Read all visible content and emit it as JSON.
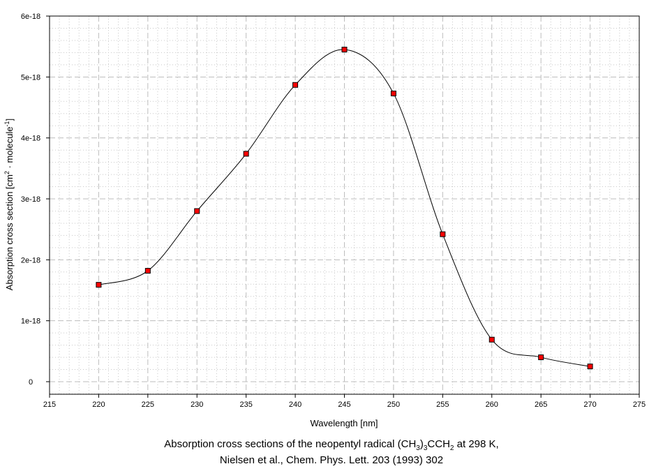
{
  "chart_data": {
    "type": "line",
    "xlabel": "Wavelength [nm]",
    "ylabel": "Absorption cross section [cm2 · molecule-1]",
    "ylabel_parts": {
      "a": "Absorption cross section [cm",
      "sup1": "2",
      "b": " · molecule",
      "sup2": "-1",
      "c": "]"
    },
    "caption_line1_parts": {
      "a": "Absorption cross sections of the neopentyl radical (CH",
      "sub1": "3",
      "b": ")",
      "sub2": "3",
      "c": "CCH",
      "sub3": "2",
      "d": " at 298 K,"
    },
    "caption_line2": "Nielsen et al., Chem. Phys. Lett. 203 (1993) 302",
    "xlim": [
      215,
      275
    ],
    "ylim": [
      -2e-19,
      6e-18
    ],
    "x_ticks": [
      "215",
      "220",
      "225",
      "230",
      "235",
      "240",
      "245",
      "250",
      "255",
      "260",
      "265",
      "270",
      "275"
    ],
    "y_ticks": [
      {
        "v": 0,
        "label": "0"
      },
      {
        "v": 1e-18,
        "label": "1e-18"
      },
      {
        "v": 2e-18,
        "label": "2e-18"
      },
      {
        "v": 3e-18,
        "label": "3e-18"
      },
      {
        "v": 4e-18,
        "label": "4e-18"
      },
      {
        "v": 5e-18,
        "label": "5e-18"
      },
      {
        "v": 6e-18,
        "label": "6e-18"
      }
    ],
    "grid": true,
    "x": [
      220,
      225,
      230,
      235,
      240,
      245,
      250,
      255,
      260,
      265,
      270
    ],
    "y": [
      1.59e-18,
      1.82e-18,
      2.8e-18,
      3.74e-18,
      4.87e-18,
      5.45e-18,
      4.73e-18,
      2.42e-18,
      6.9e-19,
      4e-19,
      2.5e-19
    ],
    "marker_color": "#ff0000",
    "line_color": "#000000"
  }
}
